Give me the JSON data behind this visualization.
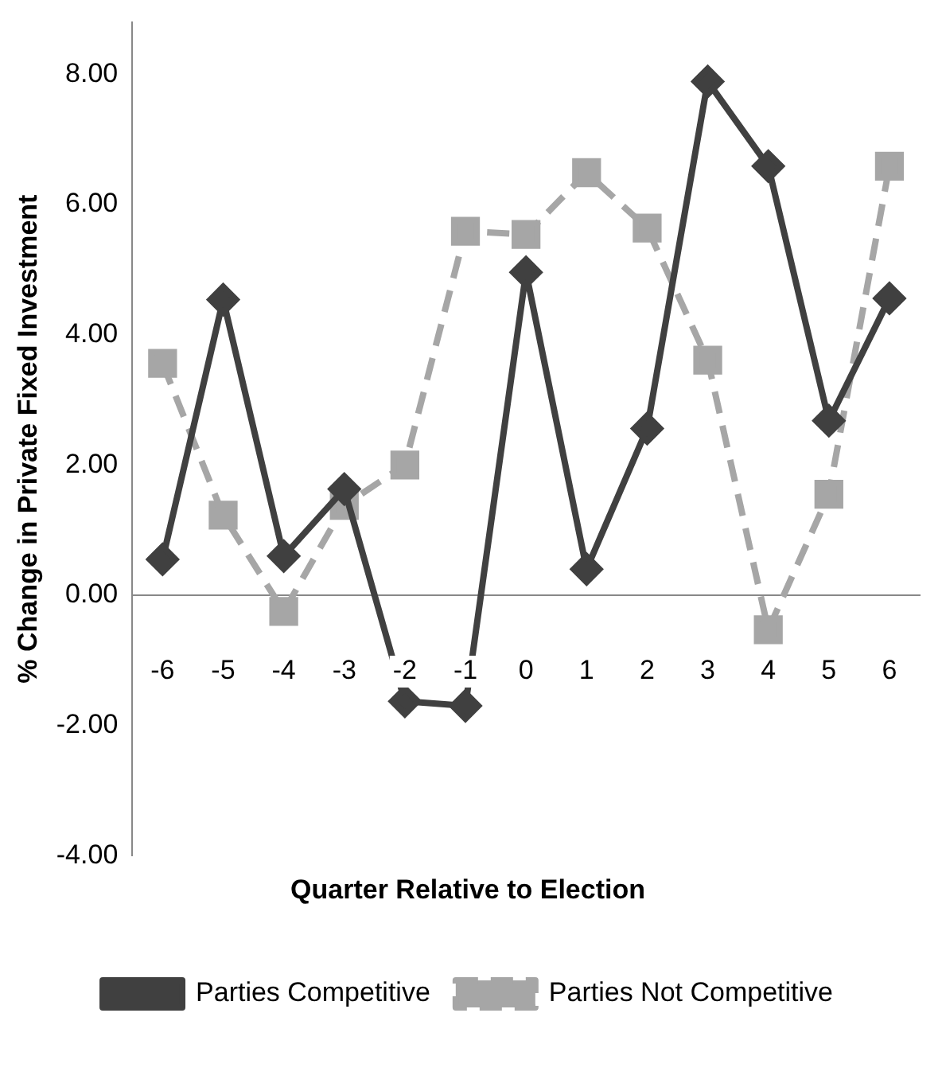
{
  "chart_data": {
    "type": "line",
    "xlabel": "Quarter Relative to Election",
    "ylabel": "% Change in Private Fixed Investment",
    "categories": [
      "-6",
      "-5",
      "-4",
      "-3",
      "-2",
      "-1",
      "0",
      "1",
      "2",
      "3",
      "4",
      "5",
      "6"
    ],
    "series": [
      {
        "name": "Parties Competitive",
        "color": "#404040",
        "marker": "diamond",
        "line_style": "solid",
        "values": [
          0.55,
          4.54,
          0.6,
          1.63,
          -1.63,
          -1.7,
          4.96,
          0.4,
          2.56,
          7.89,
          6.59,
          2.68,
          4.56
        ]
      },
      {
        "name": "Parties Not Competitive",
        "color": "#a6a6a6",
        "marker": "square",
        "line_style": "dashed",
        "values": [
          3.56,
          1.23,
          -0.25,
          1.38,
          2.0,
          5.59,
          5.54,
          6.49,
          5.64,
          3.61,
          -0.53,
          1.55,
          6.59
        ]
      }
    ],
    "ylim": [
      -4,
      8.8
    ],
    "yticks": [
      {
        "value": -4,
        "label": "-4.00"
      },
      {
        "value": -2,
        "label": "-2.00"
      },
      {
        "value": 0,
        "label": "0.00"
      },
      {
        "value": 2,
        "label": "2.00"
      },
      {
        "value": 4,
        "label": "4.00"
      },
      {
        "value": 6,
        "label": "6.00"
      },
      {
        "value": 8,
        "label": "8.00"
      }
    ],
    "grid": false,
    "legend": "bottom"
  }
}
